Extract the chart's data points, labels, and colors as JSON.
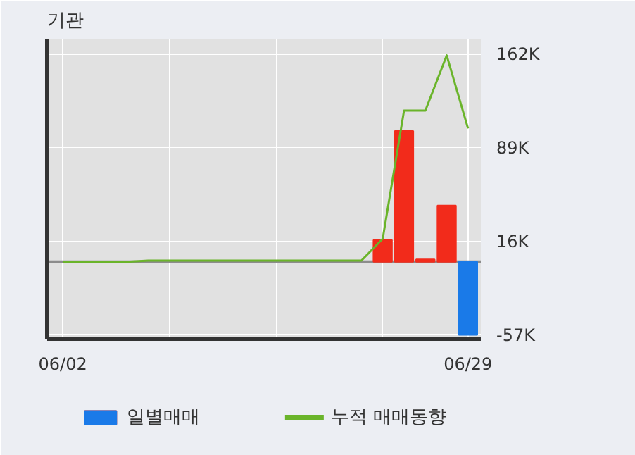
{
  "chart_data": {
    "type": "bar",
    "title": "기관",
    "categories": [
      "06/02",
      null,
      null,
      null,
      null,
      null,
      null,
      null,
      null,
      null,
      null,
      null,
      null,
      null,
      null,
      null,
      null,
      null,
      null,
      "06/29"
    ],
    "series": [
      {
        "name": "일별매매",
        "values": [
          null,
          null,
          null,
          null,
          null,
          null,
          null,
          null,
          null,
          null,
          null,
          null,
          null,
          null,
          null,
          17000,
          102000,
          2000,
          44000,
          -57000
        ],
        "colors": [
          "#f22b1b",
          "#f22b1b",
          "#f22b1b",
          "#f22b1b",
          "#f22b1b",
          "#f22b1b",
          "#f22b1b",
          "#f22b1b",
          "#f22b1b",
          "#f22b1b",
          "#f22b1b",
          "#f22b1b",
          "#f22b1b",
          "#f22b1b",
          "#f22b1b",
          "#f22b1b",
          "#f22b1b",
          "#f22b1b",
          "#f22b1b",
          "#1a7ae8"
        ]
      },
      {
        "name": "누적 매매동향",
        "type": "line",
        "color": "#6ab42a",
        "values": [
          0,
          0,
          0,
          0,
          1000,
          1000,
          1000,
          1000,
          1000,
          1000,
          1000,
          1000,
          1000,
          1000,
          1000,
          18000,
          118000,
          118000,
          161000,
          104000
        ]
      }
    ],
    "ylim": [
      -60000,
      174000
    ],
    "yticks": [
      {
        "value": -57000,
        "label": "-57K"
      },
      {
        "value": 16000,
        "label": "16K"
      },
      {
        "value": 89000,
        "label": "89K"
      },
      {
        "value": 162000,
        "label": "162K"
      }
    ],
    "grid": true,
    "legend": "bottom"
  }
}
